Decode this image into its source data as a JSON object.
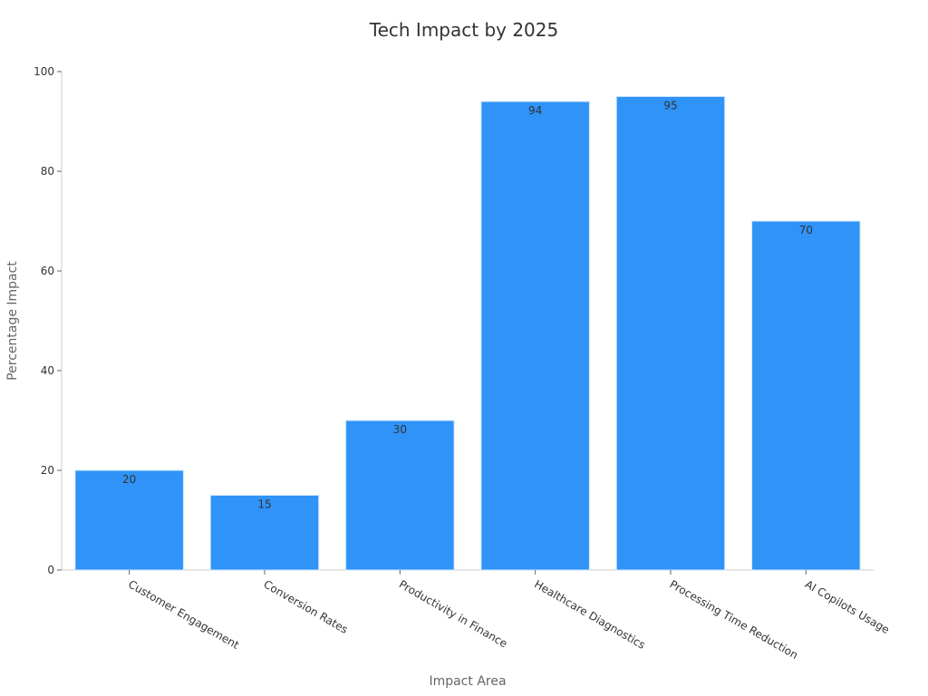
{
  "chart_data": {
    "type": "bar",
    "title": "Tech Impact by 2025",
    "xlabel": "Impact Area",
    "ylabel": "Percentage Impact",
    "categories": [
      "Customer Engagement",
      "Conversion Rates",
      "Productivity in Finance",
      "Healthcare Diagnostics",
      "Processing Time Reduction",
      "AI Copilots Usage"
    ],
    "values": [
      20,
      15,
      30,
      94,
      95,
      70
    ],
    "ylim": [
      0,
      100
    ],
    "yticks": [
      "0",
      "20",
      "40",
      "60",
      "80",
      "100"
    ],
    "grid": false,
    "legend": "none",
    "bar_color": "#2f93f7"
  }
}
